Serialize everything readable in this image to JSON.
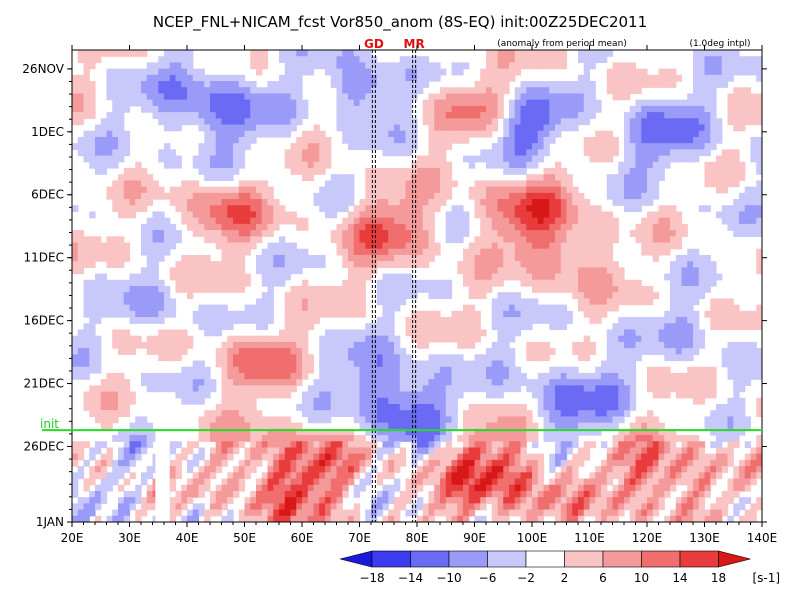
{
  "chart_data": {
    "type": "heatmap",
    "title": "NCEP_FNL+NICAM_fcst Vor850_anom (8S-EQ) init:00Z25DEC2011",
    "subtitle": "(anomaly from period mean)",
    "note": "(1.0deg intpl)",
    "x": {
      "ticks": [
        "20E",
        "30E",
        "40E",
        "50E",
        "60E",
        "70E",
        "80E",
        "90E",
        "100E",
        "110E",
        "120E",
        "130E",
        "140E"
      ],
      "values": [
        20,
        30,
        40,
        50,
        60,
        70,
        80,
        90,
        100,
        110,
        120,
        130,
        140
      ],
      "range": [
        20,
        140
      ]
    },
    "y": {
      "ticks": [
        "26NOV",
        "1DEC",
        "6DEC",
        "11DEC",
        "16DEC",
        "21DEC",
        "26DEC",
        "1JAN"
      ],
      "values": [
        0,
        5,
        10,
        15,
        20,
        25,
        30,
        36
      ],
      "range": [
        -1.5,
        36
      ],
      "reversed": true
    },
    "markers": [
      {
        "label": "GD",
        "lon": 72.5
      },
      {
        "label": "MR",
        "lon": 79.5
      }
    ],
    "init_line": {
      "label": "init",
      "day": 28.7
    },
    "colorbar": {
      "levels": [
        "−18",
        "−14",
        "−10",
        "−6",
        "−2",
        "2",
        "6",
        "10",
        "14",
        "18"
      ],
      "unit": "[s-1]",
      "colors": [
        "#1a1adc",
        "#3c3cf0",
        "#6a6af5",
        "#9a9af8",
        "#c8c8fb",
        "#ffffff",
        "#fbc4c4",
        "#f59a9a",
        "#f06e6e",
        "#e83c3c",
        "#d81818"
      ]
    },
    "missing_band_lon": [
      34.5,
      37
    ]
  }
}
